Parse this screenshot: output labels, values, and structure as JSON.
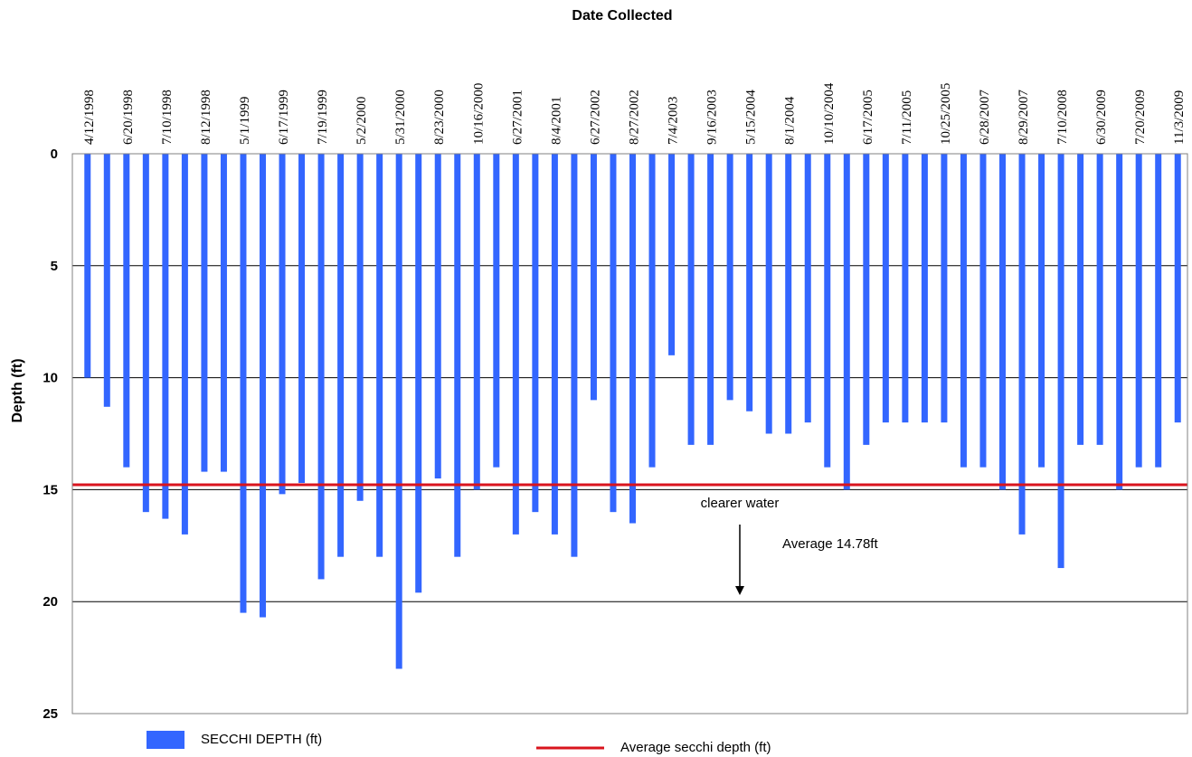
{
  "chart_data": {
    "type": "bar",
    "title": "Date Collected",
    "xlabel": "",
    "ylabel": "Depth (ft)",
    "ylim": [
      0,
      25
    ],
    "y_inverted": true,
    "y_ticks": [
      0,
      5,
      10,
      15,
      20,
      25
    ],
    "grid": "horizontal",
    "x_axis_position": "top",
    "tick_labels": [
      "4/12/1998",
      "6/20/1998",
      "7/10/1998",
      "8/12/1998",
      "5/1/1999",
      "6/17/1999",
      "7/19/1999",
      "5/2/2000",
      "5/31/2000",
      "8/23/2000",
      "10/16/2000",
      "6/27/2001",
      "8/4/2001",
      "6/27/2002",
      "8/27/2002",
      "7/4/2003",
      "9/16/2003",
      "5/15/2004",
      "8/1/2004",
      "10/10/2004",
      "6/17/2005",
      "7/11/2005",
      "10/25/2005",
      "6/28/2007",
      "8/29/2007",
      "7/10/2008",
      "6/30/2009",
      "7/20/2009",
      "11/3/2009"
    ],
    "series": [
      {
        "name": "SECCHI DEPTH (ft)",
        "color": "#3366ff",
        "values": [
          10,
          11.3,
          14,
          16,
          16.3,
          17,
          14.2,
          14.2,
          20.5,
          20.7,
          15.2,
          14.7,
          19,
          18,
          15.5,
          18,
          23,
          19.6,
          14.5,
          18,
          15,
          14,
          17,
          16,
          17,
          18,
          11,
          16,
          16.5,
          14,
          9,
          13,
          13,
          11,
          11.5,
          12.5,
          12.5,
          12,
          14,
          15,
          13,
          12,
          12,
          12,
          12,
          14,
          14,
          15,
          17,
          14,
          18.5,
          13,
          13,
          15,
          14,
          14,
          12
        ]
      }
    ],
    "reference_line": {
      "name": "Average secchi depth (ft)",
      "value": 14.78,
      "color": "#d9141e",
      "label": "Average 14.78ft"
    },
    "annotations": {
      "arrow_label": "clearer water"
    },
    "legend": {
      "placement": "bottom",
      "bar_entry": "SECCHI DEPTH (ft)",
      "line_entry": "Average secchi depth (ft)"
    }
  }
}
